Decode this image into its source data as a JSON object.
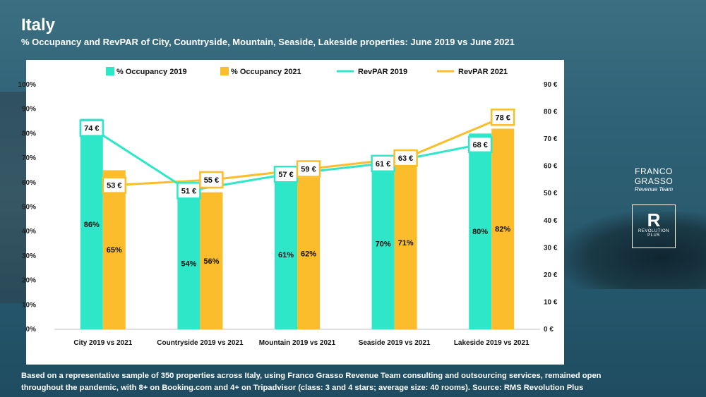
{
  "title": "Italy",
  "subtitle": "% Occupancy and RevPAR of City, Countryside, Mountain, Seaside, Lakeside properties:  June 2019 vs June 2021",
  "footer": {
    "line1": "Based on a representative sample of 350 properties across Italy, using Franco Grasso Revenue Team consulting and outsourcing services, remained open",
    "line2": "throughout the pandemic, with 8+ on Booking.com and 4+ on Tripadvisor (class: 3 and 4 stars; average size: 40 rooms). Source: RMS Revolution Plus"
  },
  "logos": {
    "franco_grasso": "FRANCO GRASSO",
    "franco_grasso_sub": "Revenue Team",
    "revolution_mark": "R",
    "revolution_name": "REVOLUTION",
    "revolution_sub": "PLUS"
  },
  "colors": {
    "occupancy_2019": "#2ee6c8",
    "occupancy_2021": "#fbbd2b",
    "revpar_2019": "#2ee6c8",
    "revpar_2021": "#fbbd2b"
  },
  "chart_data": {
    "type": "bar",
    "categories": [
      "City 2019 vs 2021",
      "Countryside 2019 vs 2021",
      "Mountain 2019 vs 2021",
      "Seaside 2019 vs 2021",
      "Lakeside 2019 vs 2021"
    ],
    "series": [
      {
        "name": "% Occupancy 2019",
        "type": "bar",
        "axis": "left",
        "values": [
          86,
          54,
          61,
          70,
          80
        ],
        "labels": [
          "86%",
          "54%",
          "61%",
          "70%",
          "80%"
        ]
      },
      {
        "name": "% Occupancy 2021",
        "type": "bar",
        "axis": "left",
        "values": [
          65,
          56,
          62,
          71,
          82
        ],
        "labels": [
          "65%",
          "56%",
          "62%",
          "71%",
          "82%"
        ]
      },
      {
        "name": "RevPAR 2019",
        "type": "line",
        "axis": "right",
        "values": [
          74,
          51,
          57,
          61,
          68
        ],
        "labels": [
          "74 €",
          "51 €",
          "57 €",
          "61 €",
          "68 €"
        ]
      },
      {
        "name": "RevPAR 2021",
        "type": "line",
        "axis": "right",
        "values": [
          53,
          55,
          59,
          63,
          78
        ],
        "labels": [
          "53 €",
          "55 €",
          "59 €",
          "63 €",
          "78 €"
        ]
      }
    ],
    "left_axis": {
      "ticks": [
        "0%",
        "10%",
        "20%",
        "30%",
        "40%",
        "50%",
        "60%",
        "70%",
        "80%",
        "90%",
        "100%"
      ],
      "range": [
        0,
        100
      ]
    },
    "right_axis": {
      "ticks": [
        "0 €",
        "10 €",
        "20 €",
        "30 €",
        "40 €",
        "50 €",
        "60 €",
        "70 €",
        "80 €",
        "90 €"
      ],
      "range": [
        0,
        90
      ]
    },
    "legend_position": "top",
    "grid": false
  }
}
